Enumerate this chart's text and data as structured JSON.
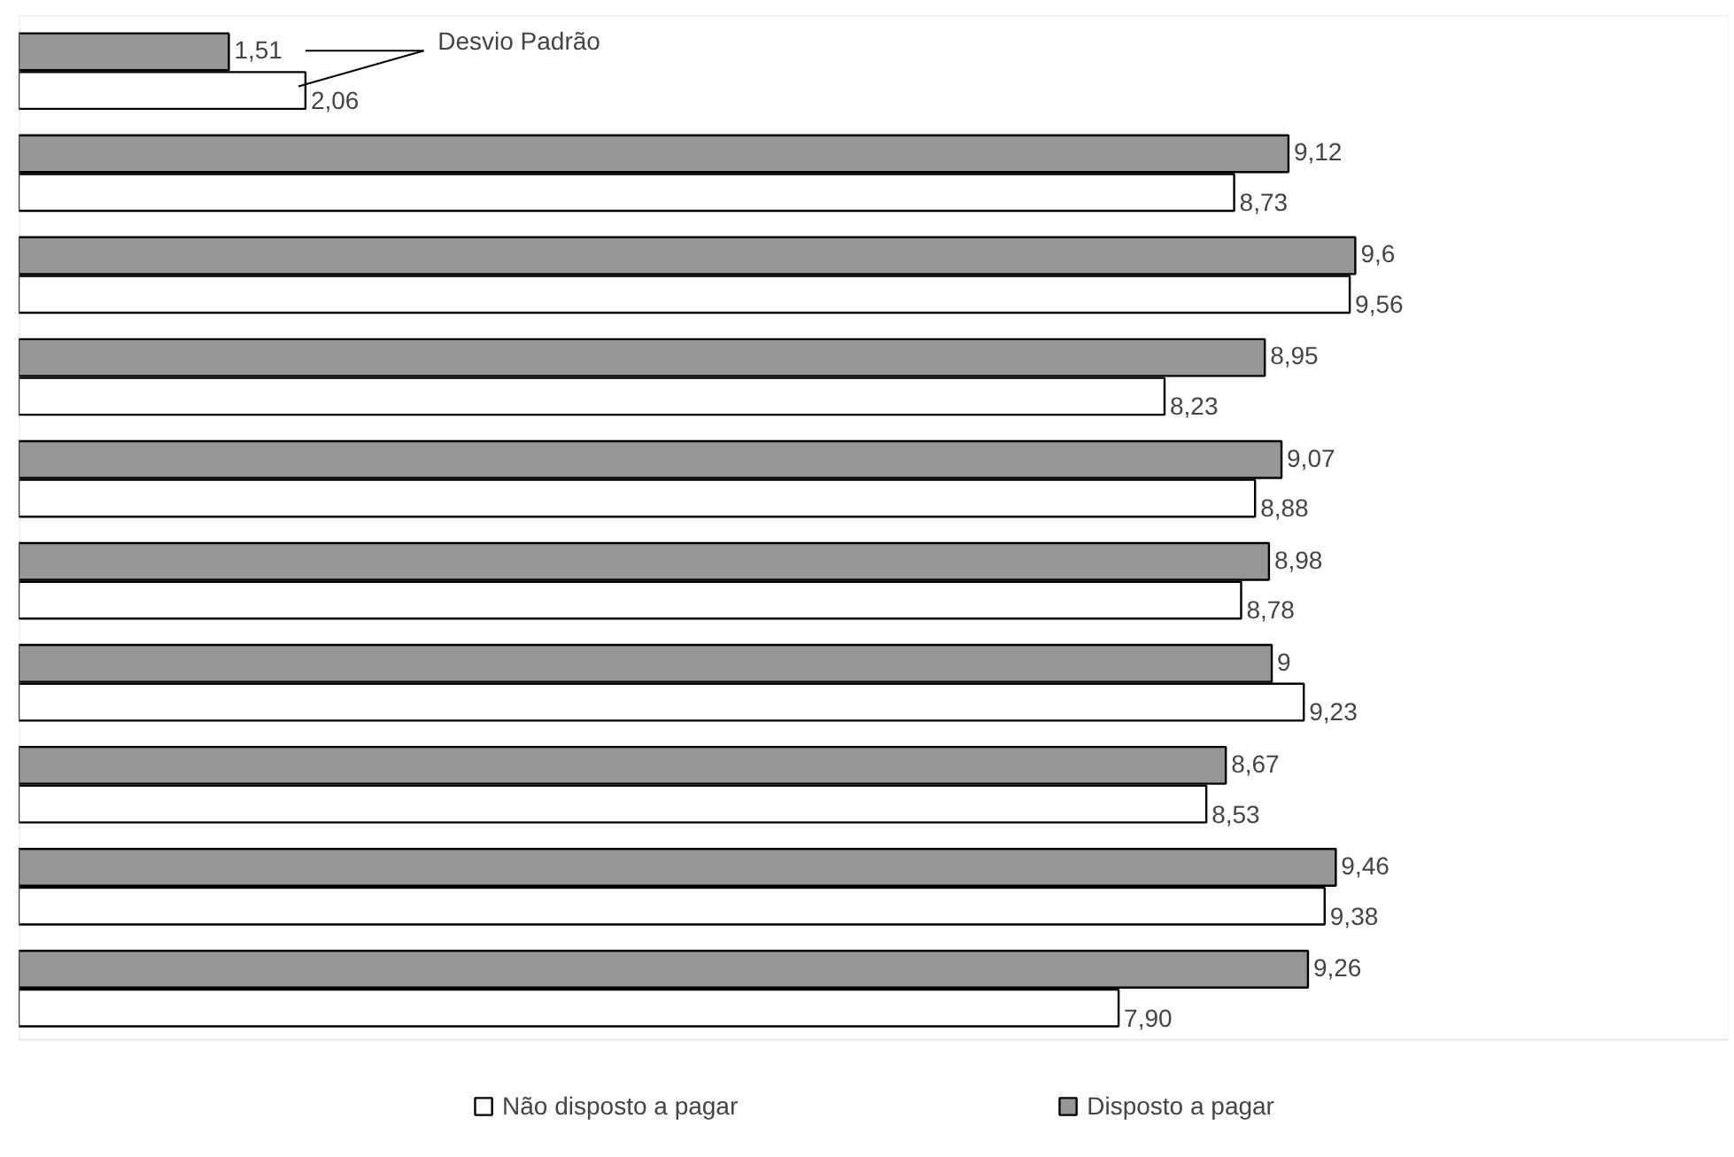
{
  "chart_data": {
    "type": "bar",
    "orientation": "horizontal",
    "categories": [
      null,
      null,
      null,
      null,
      null,
      null,
      null,
      null,
      null,
      null
    ],
    "series": [
      {
        "name": "Disposto a pagar",
        "color": "#969696",
        "values": [
          1.51,
          9.12,
          9.6,
          8.95,
          9.07,
          8.98,
          9,
          8.67,
          9.46,
          9.26
        ],
        "value_labels": [
          "1,51",
          "9,12",
          "9,6",
          "8,95",
          "9,07",
          "8,98",
          "9",
          "8,67",
          "9,46",
          "9,26"
        ]
      },
      {
        "name": "Não disposto a pagar",
        "color": "#ffffff",
        "values": [
          2.06,
          8.73,
          9.56,
          8.23,
          8.88,
          8.78,
          9.23,
          8.53,
          9.38,
          7.9
        ],
        "value_labels": [
          "2,06",
          "8,73",
          "9,56",
          "8,23",
          "8,88",
          "8,78",
          "9,23",
          "8,53",
          "9,38",
          "7,90"
        ]
      }
    ],
    "annotations": [
      "Desvio Padrão"
    ],
    "legend": "bottom",
    "tick_labels": false,
    "grid": false
  }
}
